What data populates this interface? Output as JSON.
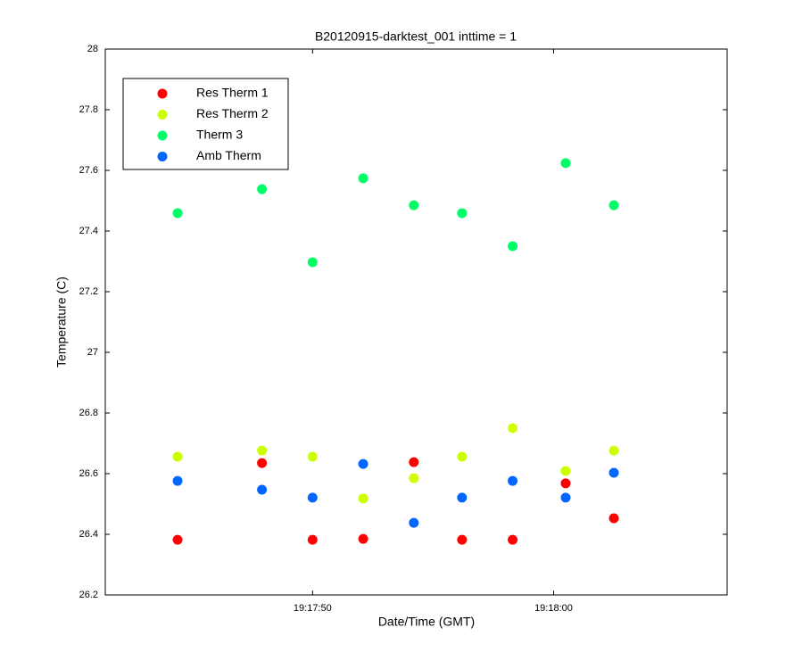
{
  "chart_data": {
    "type": "scatter",
    "title": "B20120915-darktest_001 inttime = 1",
    "x_label": "Date/Time (GMT)",
    "y_label": "Temperature (C)",
    "x": [
      69464.4,
      69467.9,
      69470,
      69472.1,
      69474.2,
      69476.2,
      69478.3,
      69480.5,
      69482.5
    ],
    "series": [
      {
        "name": "Res Therm 1",
        "color": "#ff0000",
        "values": [
          26.382,
          26.635,
          26.382,
          26.385,
          26.638,
          26.382,
          26.382,
          26.568,
          26.453
        ]
      },
      {
        "name": "Res Therm 2",
        "color": "#ccff00",
        "values": [
          26.656,
          26.676,
          26.656,
          26.518,
          26.585,
          26.656,
          26.75,
          26.609,
          26.676
        ]
      },
      {
        "name": "Therm 3",
        "color": "#00ff66",
        "values": [
          27.459,
          27.538,
          27.297,
          27.574,
          27.485,
          27.459,
          27.35,
          27.624,
          27.485
        ]
      },
      {
        "name": "Amb Therm",
        "color": "#0066ff",
        "values": [
          26.576,
          26.547,
          26.521,
          26.632,
          26.438,
          26.521,
          26.576,
          26.521,
          26.603
        ]
      }
    ],
    "xlim": [
      69461.4,
      69487.2
    ],
    "xticks": [
      {
        "value": 69470,
        "label": "19:17:50"
      },
      {
        "value": 69480,
        "label": "19:18:00"
      }
    ],
    "ylim": [
      26.2,
      28
    ],
    "yticks": [
      26.2,
      26.4,
      26.6,
      26.8,
      27,
      27.2,
      27.4,
      27.6,
      27.8,
      28
    ],
    "legend": "northwest"
  }
}
